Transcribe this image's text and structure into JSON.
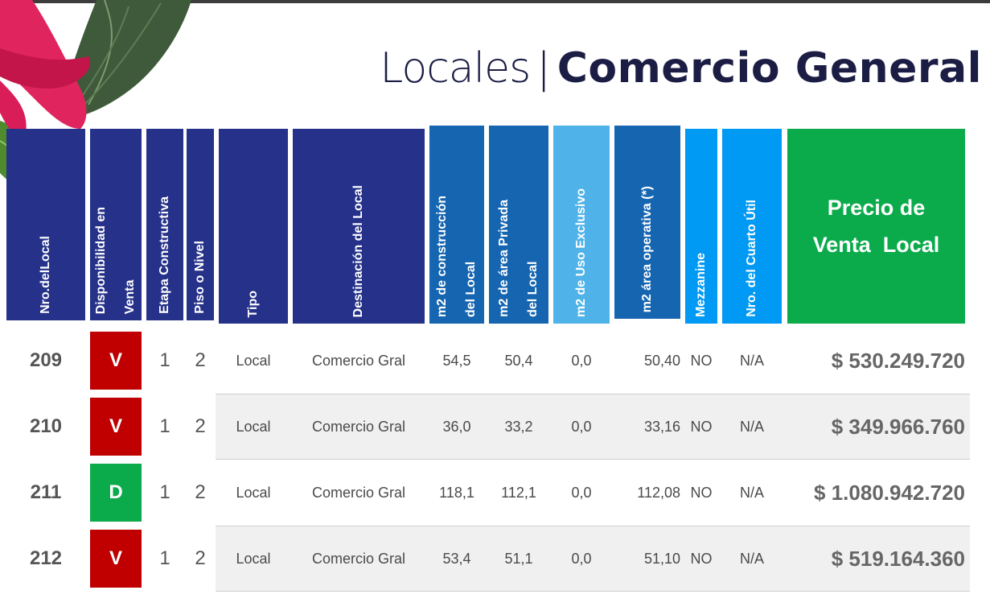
{
  "title": {
    "light": "Locales",
    "separator": "|",
    "bold": "Comercio General"
  },
  "colors": {
    "available": "#0bab4c",
    "sold": "#c00000",
    "navy": "#26328a",
    "blue": "#1565b0",
    "light_blue": "#4fb3e9",
    "cyan": "#0099f3",
    "green": "#0bab4c"
  },
  "headers": {
    "nro": "Nro.delLocal",
    "disponibilidad": "Disponibilidad en\nVenta",
    "etapa": "Etapa Constructiva",
    "piso": "Piso o Nivel",
    "tipo": "Tipo",
    "destinacion": "Destinación del Local",
    "m2_construccion": "m2 de construcción\ndel Local",
    "m2_privada": "m2 de área Privada\ndel Local",
    "m2_uso": "m2 de Uso Exclusivo",
    "m2_operativa": "m2 área operativa (*)",
    "mezzanine": "Mezzanine",
    "cuarto": "Nro. del Cuarto Útil",
    "precio": "Precio de\nVenta  Local"
  },
  "rows": [
    {
      "nro": "209",
      "disp": "V",
      "status": "sold",
      "etapa": "1",
      "piso": "2",
      "tipo": "Local",
      "destinacion": "Comercio Gral",
      "m2_construccion": "54,5",
      "m2_privada": "50,4",
      "m2_uso": "0,0",
      "m2_operativa": "50,40",
      "mezzanine": "NO",
      "cuarto": "N/A",
      "precio": "$ 530.249.720"
    },
    {
      "nro": "210",
      "disp": "V",
      "status": "sold",
      "etapa": "1",
      "piso": "2",
      "tipo": "Local",
      "destinacion": "Comercio Gral",
      "m2_construccion": "36,0",
      "m2_privada": "33,2",
      "m2_uso": "0,0",
      "m2_operativa": "33,16",
      "mezzanine": "NO",
      "cuarto": "N/A",
      "precio": "$ 349.966.760"
    },
    {
      "nro": "211",
      "disp": "D",
      "status": "available",
      "etapa": "1",
      "piso": "2",
      "tipo": "Local",
      "destinacion": "Comercio Gral",
      "m2_construccion": "118,1",
      "m2_privada": "112,1",
      "m2_uso": "0,0",
      "m2_operativa": "112,08",
      "mezzanine": "NO",
      "cuarto": "N/A",
      "precio": "$ 1.080.942.720"
    },
    {
      "nro": "212",
      "disp": "V",
      "status": "sold",
      "etapa": "1",
      "piso": "2",
      "tipo": "Local",
      "destinacion": "Comercio Gral",
      "m2_construccion": "53,4",
      "m2_privada": "51,1",
      "m2_uso": "0,0",
      "m2_operativa": "51,10",
      "mezzanine": "NO",
      "cuarto": "N/A",
      "precio": "$ 519.164.360"
    }
  ]
}
